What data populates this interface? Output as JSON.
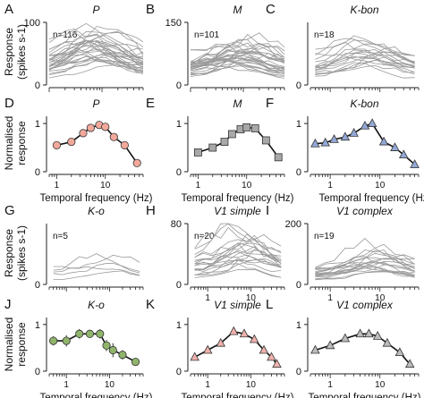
{
  "labels": {
    "response_ylabel_top": [
      "Response",
      "(spikes s-1)"
    ],
    "normalised_ylabel": [
      "Normalised",
      "response"
    ],
    "response_ylabel_bottom": [
      "Response",
      "(spikes s-1)"
    ],
    "xlabel": "Temporal frequency (Hz)",
    "xlabel_truncated": "Temporal frequency (Hz"
  },
  "chart_data": [
    {
      "id": "A",
      "type": "line",
      "title": "P",
      "n_label": "n=116",
      "x_scale": "log",
      "xlim": [
        1,
        60
      ],
      "ylim": [
        0,
        100
      ],
      "yticks": [
        0,
        100
      ],
      "xticks": [],
      "xticklabels": [],
      "series_style": "many grey single-cell tuning curves",
      "sample_curve_peaks": [
        38,
        45,
        52,
        58,
        62,
        66,
        70,
        74,
        78,
        82,
        86,
        60,
        50,
        42,
        68,
        72,
        56,
        48,
        64,
        92,
        100,
        88,
        76,
        54,
        44,
        36,
        30,
        58,
        66,
        70
      ],
      "x": [
        1,
        2,
        3,
        5,
        8,
        12,
        20,
        30,
        45,
        60
      ]
    },
    {
      "id": "B",
      "type": "line",
      "title": "M",
      "n_label": "n=101",
      "x_scale": "log",
      "xlim": [
        1,
        60
      ],
      "ylim": [
        0,
        150
      ],
      "yticks": [
        0,
        150
      ],
      "xticks": [],
      "xticklabels": [],
      "series_style": "many grey single-cell tuning curves",
      "sample_curve_peaks": [
        40,
        48,
        55,
        60,
        65,
        70,
        75,
        80,
        86,
        90,
        95,
        100,
        58,
        62,
        68,
        72,
        78,
        84,
        92,
        104,
        110,
        120,
        66,
        52,
        46,
        74,
        88,
        98,
        64,
        56
      ],
      "x": [
        1,
        2,
        3,
        5,
        8,
        12,
        20,
        30,
        45,
        60
      ]
    },
    {
      "id": "C",
      "type": "line",
      "title": "K-bon",
      "n_label": "n=18",
      "x_scale": "log",
      "xlim": [
        0.4,
        60
      ],
      "ylim": [
        0,
        80
      ],
      "yticks": [
        0
      ],
      "xticks": [],
      "xticklabels": [],
      "series_style": "grey single-cell tuning curves",
      "sample_curve_peaks": [
        30,
        35,
        40,
        45,
        50,
        55,
        60,
        25,
        38,
        42,
        48,
        52,
        28,
        33,
        58,
        44,
        36,
        40
      ],
      "x": [
        0.5,
        0.8,
        1.2,
        2,
        3,
        5,
        8,
        12,
        20,
        30,
        50
      ]
    },
    {
      "id": "D",
      "type": "line",
      "title": "P",
      "x_scale": "log",
      "xlim": [
        0.7,
        60
      ],
      "ylim": [
        0,
        1.15
      ],
      "yticks": [
        0,
        1
      ],
      "xticks": [
        1,
        10
      ],
      "xticklabels": [
        "1",
        "10"
      ],
      "marker": "circle",
      "marker_color": "#f2a89b",
      "errorbars": false,
      "x": [
        1,
        2,
        3.5,
        5,
        7.5,
        10,
        15,
        25,
        45
      ],
      "y": [
        0.55,
        0.62,
        0.8,
        0.91,
        0.97,
        0.93,
        0.72,
        0.55,
        0.18
      ]
    },
    {
      "id": "E",
      "type": "line",
      "title": "M",
      "x_scale": "log",
      "xlim": [
        0.7,
        60
      ],
      "ylim": [
        0,
        1.15
      ],
      "yticks": [
        0,
        1
      ],
      "xticks": [
        1,
        10
      ],
      "xticklabels": [
        "1",
        "10"
      ],
      "marker": "square",
      "marker_color": "#a8a8a8",
      "errorbars": false,
      "x": [
        1,
        2,
        3.5,
        5,
        7.5,
        10,
        15,
        25,
        45
      ],
      "y": [
        0.4,
        0.5,
        0.62,
        0.78,
        0.88,
        0.92,
        0.9,
        0.65,
        0.3
      ]
    },
    {
      "id": "F",
      "type": "line",
      "title": "K-bon",
      "x_scale": "log",
      "xlim": [
        0.4,
        60
      ],
      "ylim": [
        0,
        1.15
      ],
      "yticks": [
        0,
        1
      ],
      "xticks": [
        1,
        10
      ],
      "xticklabels": [
        "1",
        "10"
      ],
      "marker": "triangle",
      "marker_color": "#93a8d6",
      "errorbars": false,
      "x": [
        0.5,
        0.8,
        1.2,
        2,
        3,
        5,
        7,
        12,
        20,
        30,
        50
      ],
      "y": [
        0.58,
        0.6,
        0.67,
        0.72,
        0.8,
        0.95,
        1.0,
        0.62,
        0.5,
        0.35,
        0.15
      ]
    },
    {
      "id": "G",
      "type": "line",
      "title": "K-o",
      "n_label": "n=5",
      "x_scale": "log",
      "xlim": [
        0.4,
        60
      ],
      "ylim": [
        0,
        80
      ],
      "yticks": [
        0
      ],
      "xticks": [],
      "xticklabels": [],
      "series_style": "grey single-cell tuning curves",
      "sample_curve_peaks": [
        18,
        24,
        30,
        36,
        40
      ],
      "x": [
        0.5,
        0.8,
        1.2,
        2,
        3,
        5,
        8,
        12,
        20,
        30,
        50
      ]
    },
    {
      "id": "H",
      "type": "line",
      "title": "V1 simple",
      "n_label": "n=20",
      "x_scale": "log",
      "xlim": [
        0.4,
        60
      ],
      "ylim": [
        0,
        80
      ],
      "yticks": [
        0,
        80
      ],
      "xticks": [
        1,
        10
      ],
      "xticklabels": [
        "1",
        "10"
      ],
      "series_style": "grey single-cell tuning curves",
      "sample_curve_peaks": [
        20,
        25,
        30,
        35,
        40,
        45,
        50,
        55,
        60,
        65,
        70,
        75,
        80,
        28,
        38,
        48,
        58,
        33,
        43,
        53
      ],
      "x": [
        0.5,
        0.8,
        1.2,
        2,
        3,
        5,
        8,
        12,
        20,
        30,
        50
      ]
    },
    {
      "id": "I",
      "type": "line",
      "title": "V1 complex",
      "n_label": "n=19",
      "x_scale": "log",
      "xlim": [
        0.4,
        60
      ],
      "ylim": [
        0,
        200
      ],
      "yticks": [
        0,
        200
      ],
      "xticks": [
        1,
        10
      ],
      "xticklabels": [
        "1",
        "10"
      ],
      "series_style": "grey single-cell tuning curves",
      "sample_curve_peaks": [
        40,
        50,
        60,
        70,
        80,
        90,
        100,
        110,
        120,
        55,
        65,
        75,
        85,
        95,
        105,
        45,
        68,
        78,
        140
      ],
      "x": [
        0.5,
        0.8,
        1.2,
        2,
        3,
        5,
        8,
        12,
        20,
        30,
        50
      ]
    },
    {
      "id": "J",
      "type": "line",
      "title": "K-o",
      "x_scale": "log",
      "xlim": [
        0.4,
        60
      ],
      "ylim": [
        0,
        1.15
      ],
      "yticks": [
        0,
        1
      ],
      "xticks": [
        1,
        10
      ],
      "xticklabels": [
        "1",
        "10"
      ],
      "marker": "circle",
      "marker_color": "#8fb46a",
      "errorbars": true,
      "x": [
        0.5,
        1,
        2,
        3.5,
        6,
        8.5,
        12,
        20,
        40
      ],
      "y": [
        0.65,
        0.65,
        0.8,
        0.8,
        0.8,
        0.55,
        0.45,
        0.35,
        0.2
      ],
      "err": [
        0.1,
        0.12,
        0.1,
        0.08,
        0.1,
        0.12,
        0.15,
        0.1,
        0.06
      ]
    },
    {
      "id": "K",
      "type": "line",
      "title": "V1 simple",
      "x_scale": "log",
      "xlim": [
        0.4,
        60
      ],
      "ylim": [
        0,
        1.15
      ],
      "yticks": [
        0,
        1
      ],
      "xticks": [
        1,
        10
      ],
      "xticklabels": [
        "1",
        "10"
      ],
      "marker": "triangle",
      "marker_color": "#f0b2ad",
      "errorbars": false,
      "x": [
        0.5,
        1,
        2,
        4,
        7,
        12,
        20,
        30,
        40
      ],
      "y": [
        0.3,
        0.45,
        0.6,
        0.85,
        0.8,
        0.68,
        0.45,
        0.3,
        0.15
      ]
    },
    {
      "id": "L",
      "type": "line",
      "title": "V1 complex",
      "x_scale": "log",
      "xlim": [
        0.4,
        60
      ],
      "ylim": [
        0,
        1.15
      ],
      "yticks": [
        0,
        1
      ],
      "xticks": [
        1,
        10
      ],
      "xticklabels": [
        "1",
        "10"
      ],
      "marker": "triangle",
      "marker_color": "#bdbdbd",
      "errorbars": false,
      "x": [
        0.5,
        1,
        2,
        4,
        6,
        9,
        14,
        25,
        40
      ],
      "y": [
        0.45,
        0.55,
        0.7,
        0.8,
        0.8,
        0.75,
        0.6,
        0.4,
        0.15
      ]
    }
  ]
}
